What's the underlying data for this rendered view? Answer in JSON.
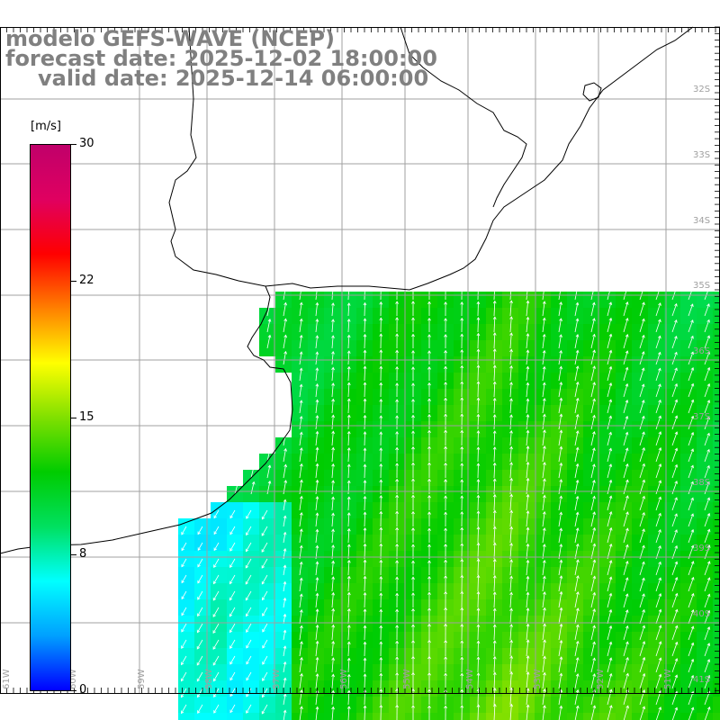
{
  "title": {
    "model": "modelo GEFS-WAVE (NCEP)",
    "forecast": "forecast date: 2025-12-02 18:00:00",
    "valid": "valid date: 2025-12-14 06:00:00"
  },
  "colorbar": {
    "unit": "[m/s]",
    "min": 0,
    "max": 30,
    "tick_labels": [
      "30",
      "22",
      "15",
      "8",
      "0"
    ],
    "colors": [
      "#0000ff",
      "#00a0ff",
      "#00ffff",
      "#00e060",
      "#00cc00",
      "#80e000",
      "#ffff00",
      "#ff8000",
      "#ff0000",
      "#e00060",
      "#c0006a"
    ]
  },
  "map": {
    "lat_labels": [
      "32S",
      "33S",
      "34S",
      "35S",
      "36S",
      "37S",
      "38S",
      "39S",
      "40S",
      "41S"
    ],
    "lon_labels": [
      "61W",
      "60W",
      "59W",
      "58W",
      "57W",
      "56W",
      "55W",
      "54W",
      "53W",
      "52W",
      "51W"
    ],
    "colors": {
      "land": "#ffffff",
      "coast": "#000000",
      "grid": "#a0a0a0",
      "arrow": "#ffffff"
    }
  }
}
